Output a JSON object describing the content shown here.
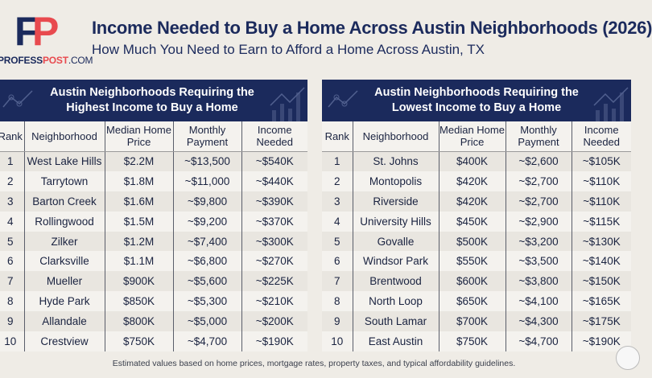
{
  "logo": {
    "letters_f": "F",
    "letters_p": "P",
    "site_a": "PROFESS",
    "site_b": "POST",
    "site_c": ".COM"
  },
  "title": "Income Needed to Buy a Home Across Austin Neighborhoods (2026)",
  "subtitle": "How Much You Need to Earn to Afford a Home Across Austin, TX",
  "columns": [
    "Rank",
    "Neighborhood",
    "Median Home Price",
    "Monthly Payment",
    "Income Needed"
  ],
  "highest": {
    "heading_1": "Austin Neighborhoods Requiring the",
    "heading_2": "Highest Income to Buy a Home",
    "rows": [
      [
        "1",
        "West Lake Hills",
        "$2.2M",
        "~$13,500",
        "~$540K"
      ],
      [
        "2",
        "Tarrytown",
        "$1.8M",
        "~$11,000",
        "~$440K"
      ],
      [
        "3",
        "Barton Creek",
        "$1.6M",
        "~$9,800",
        "~$390K"
      ],
      [
        "4",
        "Rollingwood",
        "$1.5M",
        "~$9,200",
        "~$370K"
      ],
      [
        "5",
        "Zilker",
        "$1.2M",
        "~$7,400",
        "~$300K"
      ],
      [
        "6",
        "Clarksville",
        "$1.1M",
        "~$6,800",
        "~$270K"
      ],
      [
        "7",
        "Mueller",
        "$900K",
        "~$5,600",
        "~$225K"
      ],
      [
        "8",
        "Hyde Park",
        "$850K",
        "~$5,300",
        "~$210K"
      ],
      [
        "9",
        "Allandale",
        "$800K",
        "~$5,000",
        "~$200K"
      ],
      [
        "10",
        "Crestview",
        "$750K",
        "~$4,700",
        "~$190K"
      ]
    ]
  },
  "lowest": {
    "heading_1": "Austin Neighborhoods Requiring the",
    "heading_2": "Lowest Income to Buy a Home",
    "rows": [
      [
        "1",
        "St. Johns",
        "$400K",
        "~$2,600",
        "~$105K"
      ],
      [
        "2",
        "Montopolis",
        "$420K",
        "~$2,700",
        "~$110K"
      ],
      [
        "3",
        "Riverside",
        "$420K",
        "~$2,700",
        "~$110K"
      ],
      [
        "4",
        "University Hills",
        "$450K",
        "~$2,900",
        "~$115K"
      ],
      [
        "5",
        "Govalle",
        "$500K",
        "~$3,200",
        "~$130K"
      ],
      [
        "6",
        "Windsor Park",
        "$550K",
        "~$3,500",
        "~$140K"
      ],
      [
        "7",
        "Brentwood",
        "$600K",
        "~$3,800",
        "~$150K"
      ],
      [
        "8",
        "North Loop",
        "$650K",
        "~$4,100",
        "~$165K"
      ],
      [
        "9",
        "South Lamar",
        "$700K",
        "~$4,300",
        "~$175K"
      ],
      [
        "10",
        "East Austin",
        "$750K",
        "~$4,700",
        "~$190K"
      ]
    ]
  },
  "footnote": "Estimated values based on home prices, mortgage rates, property taxes, and typical affordability guidelines."
}
